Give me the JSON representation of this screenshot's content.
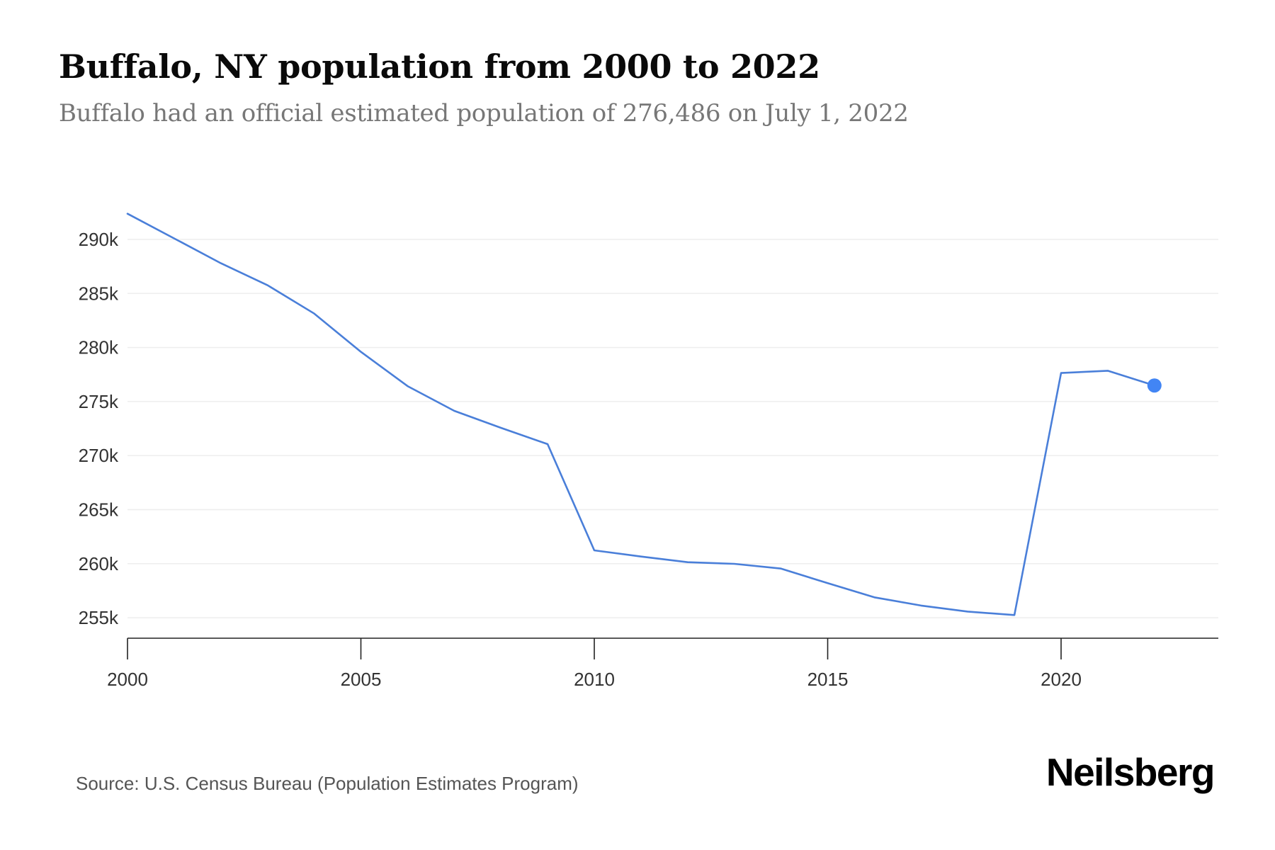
{
  "header": {
    "title": "Buffalo, NY population from 2000 to 2022",
    "subtitle": "Buffalo had an official estimated population of 276,486 on July 1, 2022"
  },
  "footer": {
    "source": "Source: U.S. Census Bureau (Population Estimates Program)",
    "logo": "Neilsberg"
  },
  "colors": {
    "line": "#4a7fd9",
    "endpoint": "#4285f4",
    "gridline": "#eeeeee",
    "axis": "#222222"
  },
  "chart_data": {
    "type": "line",
    "title": "Buffalo, NY population from 2000 to 2022",
    "subtitle": "Buffalo had an official estimated population of 276,486 on July 1, 2022",
    "xlabel": "",
    "ylabel": "",
    "x": [
      2000,
      2001,
      2002,
      2003,
      2004,
      2005,
      2006,
      2007,
      2008,
      2009,
      2010,
      2011,
      2012,
      2013,
      2014,
      2015,
      2016,
      2017,
      2018,
      2019,
      2020,
      2021,
      2022
    ],
    "series": [
      {
        "name": "Population",
        "values": [
          292380,
          290090,
          287800,
          285760,
          283140,
          279600,
          276430,
          274140,
          272570,
          271060,
          261230,
          260660,
          260140,
          259990,
          259550,
          258200,
          256890,
          256130,
          255570,
          255250,
          277640,
          277850,
          276486
        ]
      }
    ],
    "highlight_point": {
      "x": 2022,
      "value": 276486
    },
    "xlim": [
      2000,
      2023.4
    ],
    "ylim": [
      253200,
      294300
    ],
    "yticks": [
      255000,
      260000,
      265000,
      270000,
      275000,
      280000,
      285000,
      290000
    ],
    "ytick_labels": [
      "255k",
      "260k",
      "265k",
      "270k",
      "275k",
      "280k",
      "285k",
      "290k"
    ],
    "xticks": [
      2000,
      2005,
      2010,
      2015,
      2020
    ],
    "xtick_labels": [
      "2000",
      "2005",
      "2010",
      "2015",
      "2020"
    ],
    "grid": "horizontal",
    "legend": "none",
    "source": "Source: U.S. Census Bureau (Population Estimates Program)"
  }
}
